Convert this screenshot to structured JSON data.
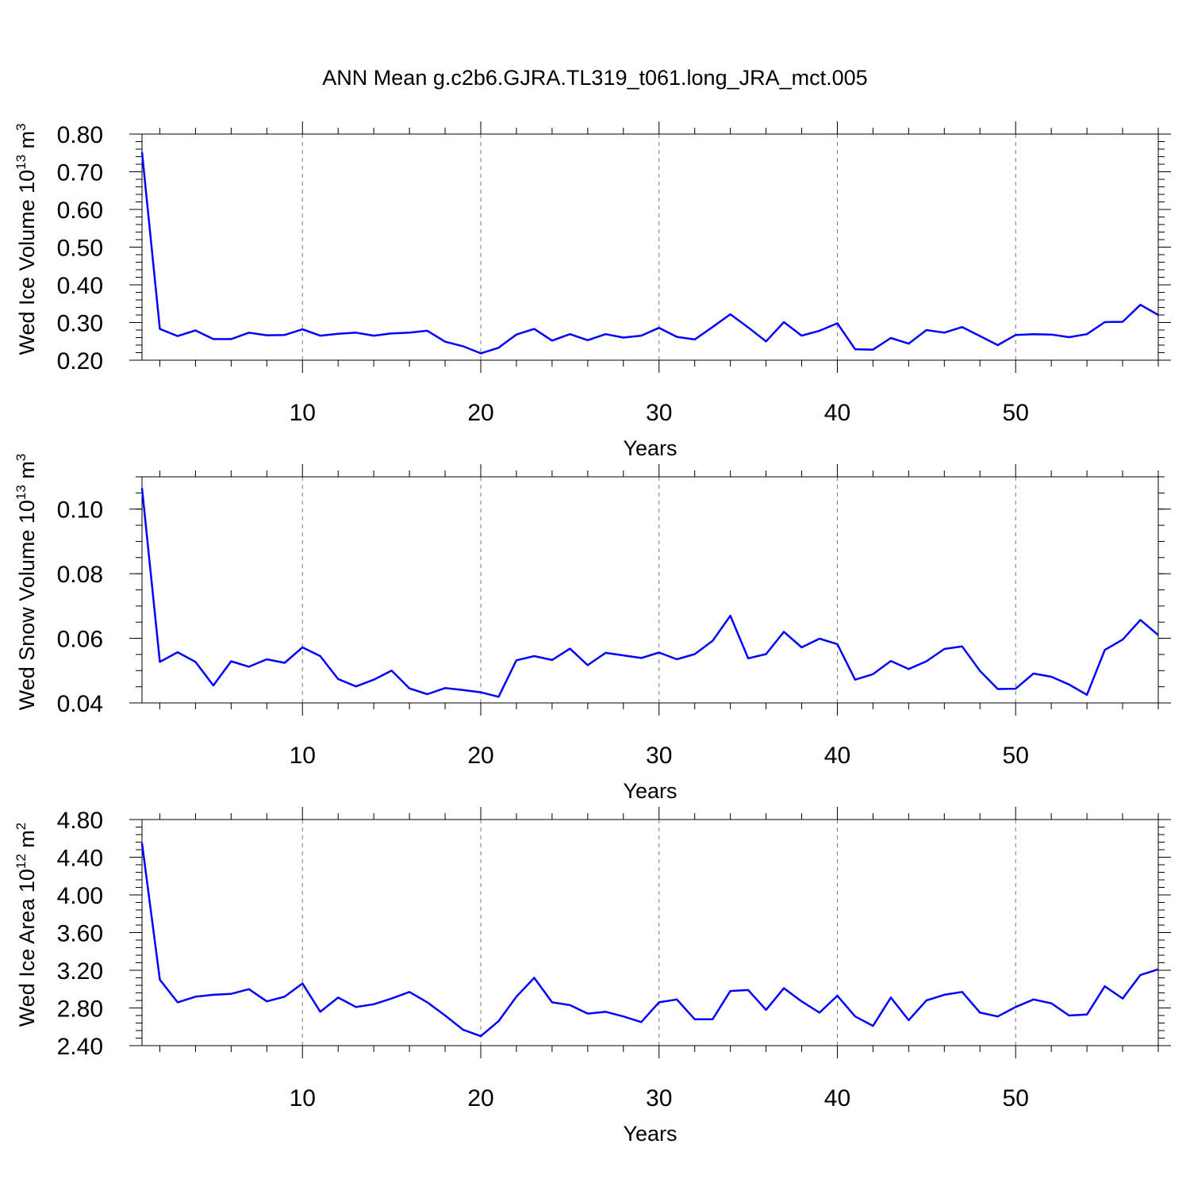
{
  "title": "ANN Mean g.c2b6.GJRA.TL319_t061.long_JRA_mct.005",
  "chart_data": [
    {
      "type": "line",
      "xlabel": "Years",
      "ylabel": "Wed Ice Volume 10",
      "ylabel_exp": "13",
      "ylabel_unit": " m",
      "ylabel_unit_exp": "3",
      "xlim": [
        1,
        58
      ],
      "ylim": [
        0.2,
        0.8
      ],
      "xticks": [
        10,
        20,
        30,
        40,
        50
      ],
      "yticks": [
        "0.20",
        "0.30",
        "0.40",
        "0.50",
        "0.60",
        "0.70",
        "0.80"
      ],
      "yminor": 0.02,
      "color": "#0000ff",
      "x": [
        1,
        2,
        3,
        4,
        5,
        6,
        7,
        8,
        9,
        10,
        11,
        12,
        13,
        14,
        15,
        16,
        17,
        18,
        19,
        20,
        21,
        22,
        23,
        24,
        25,
        26,
        27,
        28,
        29,
        30,
        31,
        32,
        33,
        34,
        35,
        36,
        37,
        38,
        39,
        40,
        41,
        42,
        43,
        44,
        45,
        46,
        47,
        48,
        49,
        50,
        51,
        52,
        53,
        54,
        55,
        56,
        57,
        58
      ],
      "values": [
        0.752,
        0.283,
        0.264,
        0.279,
        0.256,
        0.256,
        0.273,
        0.266,
        0.267,
        0.282,
        0.265,
        0.27,
        0.273,
        0.265,
        0.271,
        0.273,
        0.278,
        0.249,
        0.237,
        0.218,
        0.233,
        0.268,
        0.283,
        0.252,
        0.269,
        0.253,
        0.269,
        0.26,
        0.265,
        0.286,
        0.262,
        0.255,
        0.288,
        0.322,
        0.287,
        0.25,
        0.301,
        0.265,
        0.278,
        0.298,
        0.229,
        0.228,
        0.259,
        0.244,
        0.28,
        0.273,
        0.288,
        0.264,
        0.24,
        0.267,
        0.269,
        0.268,
        0.261,
        0.269,
        0.301,
        0.302,
        0.347,
        0.32
      ]
    },
    {
      "type": "line",
      "xlabel": "Years",
      "ylabel": "Wed Snow Volume 10",
      "ylabel_exp": "13",
      "ylabel_unit": " m",
      "ylabel_unit_exp": "3",
      "xlim": [
        1,
        58
      ],
      "ylim": [
        0.04,
        0.11
      ],
      "xticks": [
        10,
        20,
        30,
        40,
        50
      ],
      "yticks": [
        "0.04",
        "0.06",
        "0.08",
        "0.10"
      ],
      "yminor": 0.005,
      "color": "#0000ff",
      "x": [
        1,
        2,
        3,
        4,
        5,
        6,
        7,
        8,
        9,
        10,
        11,
        12,
        13,
        14,
        15,
        16,
        17,
        18,
        19,
        20,
        21,
        22,
        23,
        24,
        25,
        26,
        27,
        28,
        29,
        30,
        31,
        32,
        33,
        34,
        35,
        36,
        37,
        38,
        39,
        40,
        41,
        42,
        43,
        44,
        45,
        46,
        47,
        48,
        49,
        50,
        51,
        52,
        53,
        54,
        55,
        56,
        57,
        58
      ],
      "values": [
        0.1065,
        0.0527,
        0.0557,
        0.0527,
        0.0454,
        0.0529,
        0.0512,
        0.0535,
        0.0524,
        0.0572,
        0.0545,
        0.0474,
        0.0451,
        0.0472,
        0.05,
        0.0445,
        0.0427,
        0.0446,
        0.044,
        0.0433,
        0.0419,
        0.0532,
        0.0545,
        0.0533,
        0.0568,
        0.0517,
        0.0555,
        0.0547,
        0.0539,
        0.0556,
        0.0535,
        0.0551,
        0.0592,
        0.067,
        0.0538,
        0.0551,
        0.062,
        0.0572,
        0.0599,
        0.0582,
        0.0472,
        0.0489,
        0.053,
        0.0505,
        0.0529,
        0.0567,
        0.0575,
        0.0499,
        0.0443,
        0.0444,
        0.0491,
        0.0481,
        0.0457,
        0.0425,
        0.0564,
        0.0596,
        0.0657,
        0.061
      ]
    },
    {
      "type": "line",
      "xlabel": "Years",
      "ylabel": "Wed Ice Area 10",
      "ylabel_exp": "12",
      "ylabel_unit": " m",
      "ylabel_unit_exp": "2",
      "xlim": [
        1,
        58
      ],
      "ylim": [
        2.4,
        4.8
      ],
      "xticks": [
        10,
        20,
        30,
        40,
        50
      ],
      "yticks": [
        "2.40",
        "2.80",
        "3.20",
        "3.60",
        "4.00",
        "4.40",
        "4.80"
      ],
      "yminor": 0.08,
      "color": "#0000ff",
      "x": [
        1,
        2,
        3,
        4,
        5,
        6,
        7,
        8,
        9,
        10,
        11,
        12,
        13,
        14,
        15,
        16,
        17,
        18,
        19,
        20,
        21,
        22,
        23,
        24,
        25,
        26,
        27,
        28,
        29,
        30,
        31,
        32,
        33,
        34,
        35,
        36,
        37,
        38,
        39,
        40,
        41,
        42,
        43,
        44,
        45,
        46,
        47,
        48,
        49,
        50,
        51,
        52,
        53,
        54,
        55,
        56,
        57,
        58
      ],
      "values": [
        4.55,
        3.1,
        2.86,
        2.92,
        2.94,
        2.95,
        3.0,
        2.87,
        2.92,
        3.06,
        2.76,
        2.91,
        2.81,
        2.84,
        2.9,
        2.97,
        2.86,
        2.72,
        2.57,
        2.5,
        2.66,
        2.92,
        3.12,
        2.86,
        2.83,
        2.74,
        2.76,
        2.71,
        2.65,
        2.86,
        2.89,
        2.68,
        2.68,
        2.98,
        2.99,
        2.78,
        3.01,
        2.87,
        2.75,
        2.93,
        2.71,
        2.61,
        2.91,
        2.67,
        2.88,
        2.94,
        2.97,
        2.75,
        2.71,
        2.81,
        2.89,
        2.85,
        2.72,
        2.73,
        3.03,
        2.9,
        3.15,
        3.21
      ]
    }
  ]
}
